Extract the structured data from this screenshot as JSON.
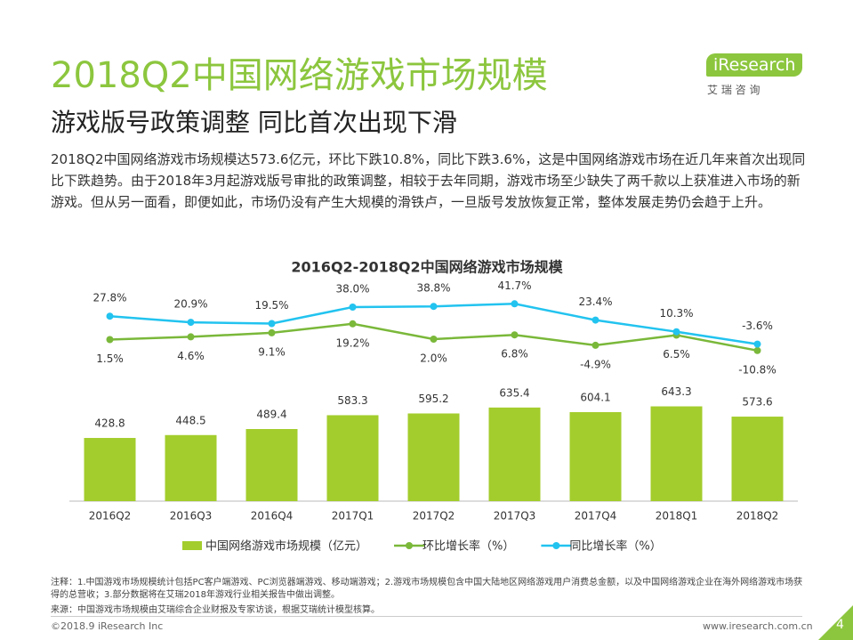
{
  "page": {
    "title": "2018Q2中国网络游戏市场规模",
    "subtitle": "游戏版号政策调整 同比首次出现下滑",
    "body": "2018Q2中国网络游戏市场规模达573.6亿元，环比下跌10.8%，同比下跌3.6%，这是中国网络游戏市场在近几年来首次出现同比下跌趋势。由于2018年3月起游戏版号审批的政策调整，相较于去年同期，游戏市场至少缺失了两千款以上获准进入市场的新游戏。但从另一面看，即便如此，市场仍没有产生大规模的滑铁卢，一旦版号发放恢复正常，整体发展走势仍会趋于上升。",
    "logo": "iResearch",
    "logo_cn": "艾 瑞 咨 询",
    "notes": [
      "注释：1.中国游戏市场规模统计包括PC客户端游戏、PC浏览器端游戏、移动端游戏；2.游戏市场规模包含中国大陆地区网络游戏用户消费总金额，以及中国网络游戏企业在海外网络游戏市场获得的总营收；3.部分数据将在艾瑞2018年游戏行业相关报告中做出调整。",
      "来源：中国游戏市场规模由艾瑞综合企业财报及专家访谈，根据艾瑞统计模型核算。"
    ],
    "copyright": "©2018.9 iResearch Inc",
    "url": "www.iresearch.com.cn",
    "page_number": "4"
  },
  "chart_data": {
    "type": "bar",
    "title": "2016Q2-2018Q2中国网络游戏市场规模",
    "categories": [
      "2016Q2",
      "2016Q3",
      "2016Q4",
      "2017Q1",
      "2017Q2",
      "2017Q3",
      "2017Q4",
      "2018Q1",
      "2018Q2"
    ],
    "ylim": [
      0,
      1450
    ],
    "y2lim": [
      -180,
      60
    ],
    "series": [
      {
        "name": "中国网络游戏市场规模（亿元）",
        "type": "bar",
        "color": "#a3cd2c",
        "values": [
          428.8,
          448.5,
          489.4,
          583.3,
          595.2,
          635.4,
          604.1,
          643.3,
          573.6
        ]
      },
      {
        "name": "环比增长率（%）",
        "type": "line",
        "axis": "y2",
        "color": "#7ab83a",
        "values": [
          1.5,
          4.6,
          9.1,
          19.2,
          2.0,
          6.8,
          -4.9,
          6.5,
          -10.8
        ],
        "value_labels": [
          "1.5%",
          "4.6%",
          "9.1%",
          "19.2%",
          "2.0%",
          "6.8%",
          "-4.9%",
          "6.5%",
          "-10.8%"
        ]
      },
      {
        "name": "同比增长率（%）",
        "type": "line",
        "axis": "y2",
        "color": "#22c3ef",
        "values": [
          27.8,
          20.9,
          19.5,
          38.0,
          38.8,
          41.7,
          23.4,
          10.3,
          -3.6
        ],
        "value_labels": [
          "27.8%",
          "20.9%",
          "19.5%",
          "38.0%",
          "38.8%",
          "41.7%",
          "23.4%",
          "10.3%",
          "-3.6%"
        ]
      }
    ]
  }
}
